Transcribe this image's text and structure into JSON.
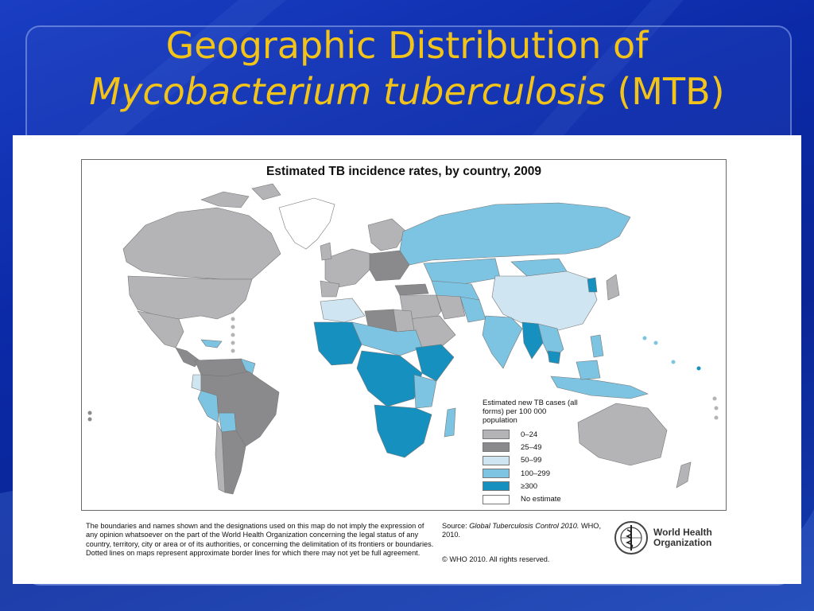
{
  "slide": {
    "title_line1": "Geographic Distribution of",
    "title_italic": "Mycobacterium tuberculosis",
    "title_suffix": " (MTB)"
  },
  "map": {
    "title": "Estimated TB incidence rates, by country, 2009",
    "legend_title": "Estimated new TB cases (all forms) per 100 000 population",
    "legend": [
      {
        "label": "0–24",
        "color": "#b4b4b6"
      },
      {
        "label": "25–49",
        "color": "#8a8a8c"
      },
      {
        "label": "50–99",
        "color": "#cfe6f2"
      },
      {
        "label": "100–299",
        "color": "#7cc4e2"
      },
      {
        "label": "≥300",
        "color": "#1590bf"
      },
      {
        "label": "No estimate",
        "color": "#ffffff"
      }
    ]
  },
  "footer": {
    "disclaimer": "The boundaries and names shown and the designations used on this map do not imply the expression of any opinion whatsoever on the part of the World Health Organization concerning the legal status of any country, territory, city or area or of its authorities, or concerning the delimitation of its frontiers or boundaries. Dotted lines on maps represent approximate border lines for which there may not yet be full agreement.",
    "source_prefix": "Source: ",
    "source_italic": "Global Tuberculosis Control 2010.",
    "source_suffix": " WHO, 2010.",
    "copyright": "© WHO 2010. All rights reserved.",
    "who_line1": "World Health",
    "who_line2": "Organization"
  }
}
